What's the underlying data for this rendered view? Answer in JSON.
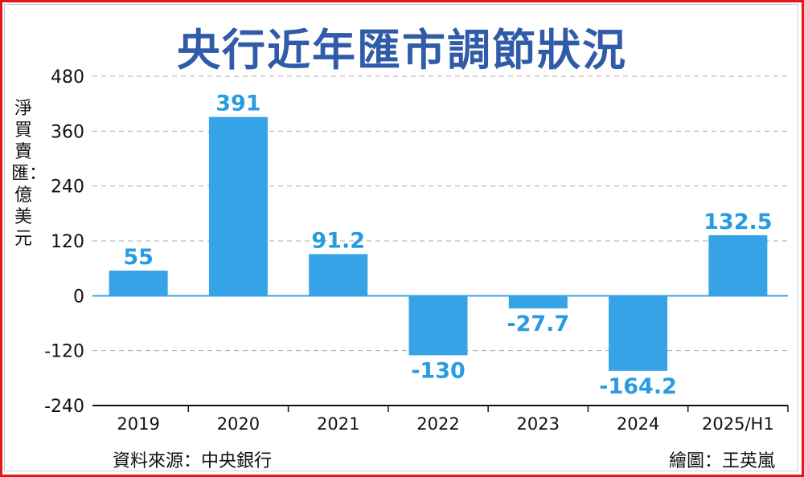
{
  "chart_data": {
    "type": "bar",
    "title": "央行近年匯市調節狀況",
    "ylabel": "淨買賣匯：億美元",
    "xlabel": "",
    "categories": [
      "2019",
      "2020",
      "2021",
      "2022",
      "2023",
      "2024",
      "2025/H1"
    ],
    "values": [
      55,
      391,
      91.2,
      -130,
      -27.7,
      -164.2,
      132.5
    ],
    "value_labels": [
      "55",
      "391",
      "91.2",
      "-130",
      "-27.7",
      "-164.2",
      "132.5"
    ],
    "yticks": [
      480,
      360,
      240,
      120,
      0,
      -120,
      -240
    ],
    "ytick_labels": [
      "480",
      "360",
      "240",
      "120",
      "0",
      "-120",
      "-240"
    ],
    "ylim": [
      -240,
      480
    ],
    "grid": true,
    "bar_color": "#36a3e6",
    "label_color": "#2a9be0"
  },
  "source": "資料來源：中央銀行",
  "credit": "繪圖：王英嵐",
  "colors": {
    "title": "#2f5ba8",
    "border": "#e8161b"
  }
}
